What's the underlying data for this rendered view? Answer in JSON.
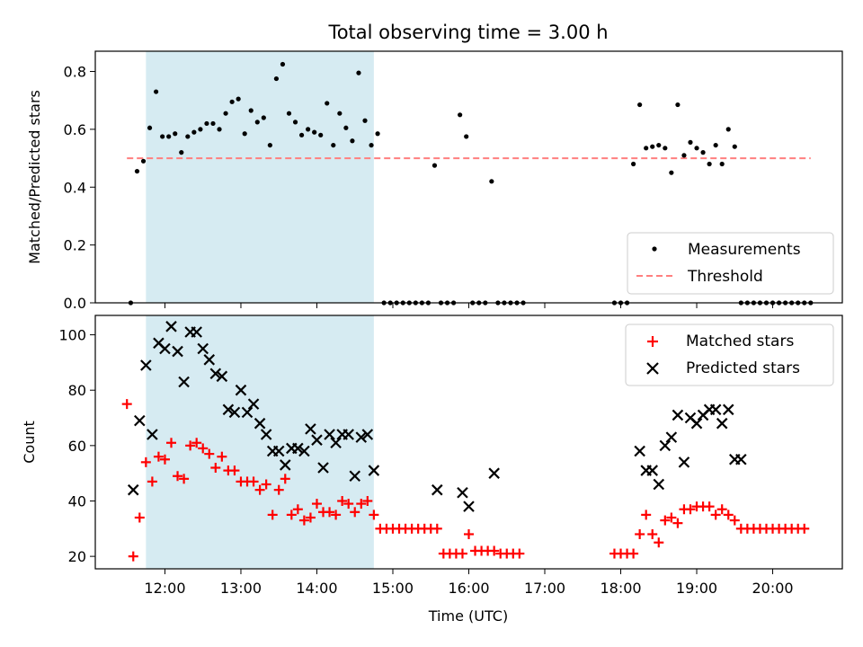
{
  "chart_data": [
    {
      "type": "scatter",
      "title": "Total observing time = 3.00 h",
      "ylabel": "Matched/Predicted stars",
      "xlabel": "",
      "xlim": [
        "11:05",
        "20:55"
      ],
      "ylim": [
        0,
        0.87
      ],
      "yticks": [
        "0.0",
        "0.2",
        "0.4",
        "0.6",
        "0.8"
      ],
      "grid": false,
      "legend_position": "lower-right",
      "legend": [
        "Measurements",
        "Threshold"
      ],
      "highlight_span": [
        "11:45",
        "14:45"
      ],
      "threshold": {
        "name": "Threshold",
        "y": 0.5,
        "x_start": "11:30",
        "x_end": "20:30",
        "color": "#ff7f7f"
      },
      "series": [
        {
          "name": "Measurements",
          "color": "#000000",
          "marker": "dot",
          "x": [
            "11:33",
            "11:38",
            "11:43",
            "11:48",
            "11:53",
            "11:58",
            "12:03",
            "12:08",
            "12:13",
            "12:18",
            "12:23",
            "12:28",
            "12:33",
            "12:38",
            "12:43",
            "12:48",
            "12:53",
            "12:58",
            "13:03",
            "13:08",
            "13:13",
            "13:18",
            "13:23",
            "13:28",
            "13:33",
            "13:38",
            "13:43",
            "13:48",
            "13:53",
            "13:58",
            "14:03",
            "14:08",
            "14:13",
            "14:18",
            "14:23",
            "14:28",
            "14:33",
            "14:38",
            "14:43",
            "14:48",
            "14:53",
            "14:58",
            "15:03",
            "15:08",
            "15:13",
            "15:18",
            "15:23",
            "15:28",
            "15:33",
            "15:38",
            "15:43",
            "15:48",
            "15:53",
            "15:58",
            "16:03",
            "16:08",
            "16:13",
            "16:18",
            "16:23",
            "16:28",
            "16:33",
            "16:38",
            "16:43",
            "17:55",
            "18:00",
            "18:05",
            "18:10",
            "18:15",
            "18:20",
            "18:25",
            "18:30",
            "18:35",
            "18:40",
            "18:45",
            "18:50",
            "18:55",
            "19:00",
            "19:05",
            "19:10",
            "19:15",
            "19:20",
            "19:25",
            "19:30",
            "19:35",
            "19:40",
            "19:45",
            "19:50",
            "19:55",
            "20:00",
            "20:05",
            "20:10",
            "20:15",
            "20:20",
            "20:25",
            "20:30"
          ],
          "y": [
            0,
            0.455,
            0.49,
            0.605,
            0.73,
            0.575,
            0.575,
            0.585,
            0.52,
            0.575,
            0.59,
            0.6,
            0.62,
            0.62,
            0.6,
            0.655,
            0.695,
            0.705,
            0.585,
            0.665,
            0.625,
            0.64,
            0.545,
            0.775,
            0.825,
            0.655,
            0.625,
            0.58,
            0.6,
            0.59,
            0.58,
            0.69,
            0.545,
            0.655,
            0.605,
            0.56,
            0.795,
            0.63,
            0.545,
            0.585,
            0,
            0,
            0,
            0,
            0,
            0,
            0,
            0,
            0.475,
            0,
            0,
            0,
            0.65,
            0.575,
            0,
            0,
            0,
            0.42,
            0,
            0,
            0,
            0,
            0,
            0,
            0,
            0,
            0.48,
            0.685,
            0.535,
            0.54,
            0.545,
            0.535,
            0.45,
            0.685,
            0.51,
            0.555,
            0.535,
            0.52,
            0.48,
            0.545,
            0.48,
            0.6,
            0.54,
            0,
            0,
            0,
            0,
            0,
            0,
            0,
            0,
            0,
            0,
            0,
            0
          ]
        }
      ]
    },
    {
      "type": "scatter",
      "title": "",
      "xlabel": "Time (UTC)",
      "ylabel": "Count",
      "xlim": [
        "11:05",
        "20:55"
      ],
      "ylim": [
        15.5,
        107
      ],
      "xticks": [
        "12:00",
        "13:00",
        "14:00",
        "15:00",
        "16:00",
        "17:00",
        "18:00",
        "19:00",
        "20:00"
      ],
      "yticks": [
        "20",
        "40",
        "60",
        "80",
        "100"
      ],
      "grid": false,
      "legend_position": "upper-right",
      "legend": [
        "Matched stars",
        "Predicted stars"
      ],
      "highlight_span": [
        "11:45",
        "14:45"
      ],
      "series": [
        {
          "name": "Matched stars",
          "color": "#ff0000",
          "marker": "plus",
          "points": [
            [
              "11:30",
              75
            ],
            [
              "11:35",
              20
            ],
            [
              "11:40",
              34
            ],
            [
              "11:45",
              54
            ],
            [
              "11:50",
              47
            ],
            [
              "11:55",
              56
            ],
            [
              "12:00",
              55
            ],
            [
              "12:05",
              61
            ],
            [
              "12:10",
              49
            ],
            [
              "12:15",
              48
            ],
            [
              "12:20",
              60
            ],
            [
              "12:25",
              61
            ],
            [
              "12:30",
              59
            ],
            [
              "12:35",
              57
            ],
            [
              "12:40",
              52
            ],
            [
              "12:45",
              56
            ],
            [
              "12:50",
              51
            ],
            [
              "12:55",
              51
            ],
            [
              "13:00",
              47
            ],
            [
              "13:05",
              47
            ],
            [
              "13:10",
              47
            ],
            [
              "13:15",
              44
            ],
            [
              "13:20",
              46
            ],
            [
              "13:25",
              35
            ],
            [
              "13:30",
              44
            ],
            [
              "13:35",
              48
            ],
            [
              "13:40",
              35
            ],
            [
              "13:45",
              37
            ],
            [
              "13:50",
              33
            ],
            [
              "13:55",
              34
            ],
            [
              "14:00",
              39
            ],
            [
              "14:05",
              36
            ],
            [
              "14:10",
              36
            ],
            [
              "14:15",
              35
            ],
            [
              "14:20",
              40
            ],
            [
              "14:25",
              39
            ],
            [
              "14:30",
              36
            ],
            [
              "14:35",
              39
            ],
            [
              "14:40",
              40
            ],
            [
              "14:45",
              35
            ],
            [
              "14:50",
              30
            ],
            [
              "14:55",
              30
            ],
            [
              "15:00",
              30
            ],
            [
              "15:05",
              30
            ],
            [
              "15:10",
              30
            ],
            [
              "15:15",
              30
            ],
            [
              "15:20",
              30
            ],
            [
              "15:25",
              30
            ],
            [
              "15:30",
              30
            ],
            [
              "15:35",
              30
            ],
            [
              "15:40",
              21
            ],
            [
              "15:45",
              21
            ],
            [
              "15:50",
              21
            ],
            [
              "15:55",
              21
            ],
            [
              "16:00",
              28
            ],
            [
              "16:05",
              22
            ],
            [
              "16:10",
              22
            ],
            [
              "16:15",
              22
            ],
            [
              "16:20",
              22
            ],
            [
              "16:25",
              21
            ],
            [
              "16:30",
              21
            ],
            [
              "16:35",
              21
            ],
            [
              "16:40",
              21
            ],
            [
              "17:55",
              21
            ],
            [
              "18:00",
              21
            ],
            [
              "18:05",
              21
            ],
            [
              "18:10",
              21
            ],
            [
              "18:15",
              28
            ],
            [
              "18:20",
              35
            ],
            [
              "18:25",
              28
            ],
            [
              "18:30",
              25
            ],
            [
              "18:35",
              33
            ],
            [
              "18:40",
              34
            ],
            [
              "18:45",
              32
            ],
            [
              "18:50",
              37
            ],
            [
              "18:55",
              37
            ],
            [
              "19:00",
              38
            ],
            [
              "19:05",
              38
            ],
            [
              "19:10",
              38
            ],
            [
              "19:15",
              35
            ],
            [
              "19:20",
              37
            ],
            [
              "19:25",
              35
            ],
            [
              "19:30",
              33
            ],
            [
              "19:35",
              30
            ],
            [
              "19:40",
              30
            ],
            [
              "19:45",
              30
            ],
            [
              "19:50",
              30
            ],
            [
              "19:55",
              30
            ],
            [
              "20:00",
              30
            ],
            [
              "20:05",
              30
            ],
            [
              "20:10",
              30
            ],
            [
              "20:15",
              30
            ],
            [
              "20:20",
              30
            ],
            [
              "20:25",
              30
            ]
          ]
        },
        {
          "name": "Predicted stars",
          "color": "#000000",
          "marker": "x",
          "points": [
            [
              "11:35",
              44
            ],
            [
              "11:40",
              69
            ],
            [
              "11:45",
              89
            ],
            [
              "11:50",
              64
            ],
            [
              "11:55",
              97
            ],
            [
              "12:00",
              95
            ],
            [
              "12:05",
              103
            ],
            [
              "12:10",
              94
            ],
            [
              "12:15",
              83
            ],
            [
              "12:20",
              101
            ],
            [
              "12:25",
              101
            ],
            [
              "12:30",
              95
            ],
            [
              "12:35",
              91
            ],
            [
              "12:40",
              86
            ],
            [
              "12:45",
              85
            ],
            [
              "12:50",
              73
            ],
            [
              "12:55",
              72
            ],
            [
              "13:00",
              80
            ],
            [
              "13:05",
              72
            ],
            [
              "13:10",
              75
            ],
            [
              "13:15",
              68
            ],
            [
              "13:20",
              64
            ],
            [
              "13:25",
              58
            ],
            [
              "13:30",
              58
            ],
            [
              "13:35",
              53
            ],
            [
              "13:40",
              59
            ],
            [
              "13:45",
              59
            ],
            [
              "13:50",
              58
            ],
            [
              "13:55",
              66
            ],
            [
              "14:00",
              62
            ],
            [
              "14:05",
              52
            ],
            [
              "14:10",
              64
            ],
            [
              "14:15",
              61
            ],
            [
              "14:20",
              64
            ],
            [
              "14:25",
              64
            ],
            [
              "14:30",
              49
            ],
            [
              "14:35",
              63
            ],
            [
              "14:40",
              64
            ],
            [
              "14:45",
              51
            ],
            [
              "15:35",
              44
            ],
            [
              "15:55",
              43
            ],
            [
              "16:00",
              38
            ],
            [
              "16:20",
              50
            ],
            [
              "18:15",
              58
            ],
            [
              "18:20",
              51
            ],
            [
              "18:25",
              51
            ],
            [
              "18:30",
              46
            ],
            [
              "18:35",
              60
            ],
            [
              "18:40",
              63
            ],
            [
              "18:45",
              71
            ],
            [
              "18:50",
              54
            ],
            [
              "18:55",
              70
            ],
            [
              "19:00",
              68
            ],
            [
              "19:05",
              71
            ],
            [
              "19:10",
              73
            ],
            [
              "19:15",
              73
            ],
            [
              "19:20",
              68
            ],
            [
              "19:25",
              73
            ],
            [
              "19:30",
              55
            ],
            [
              "19:35",
              55
            ]
          ]
        }
      ]
    }
  ]
}
